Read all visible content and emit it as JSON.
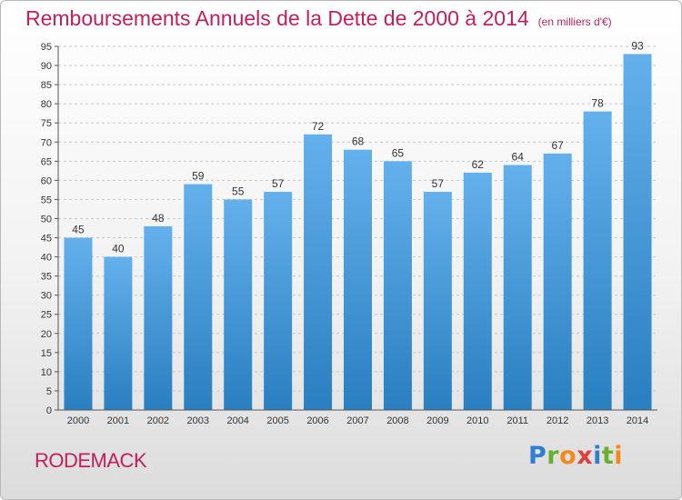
{
  "title": "Remboursements Annuels de la Dette de 2000 à 2014",
  "unit": "(en milliers d'€)",
  "place": "RODEMACK",
  "logo": {
    "text": "Proxiti",
    "letters": [
      {
        "ch": "P",
        "color": "#2f7fd0"
      },
      {
        "ch": "r",
        "color": "#6bb02c"
      },
      {
        "ch": "o",
        "color": "#f08a1c"
      },
      {
        "ch": "x",
        "color": "#e0403b"
      },
      {
        "ch": "i",
        "color": "#2f7fd0"
      },
      {
        "ch": "t",
        "color": "#6bb02c"
      },
      {
        "ch": "i",
        "color": "#f08a1c"
      }
    ]
  },
  "colors": {
    "accent": "#c21f5b",
    "bar_top": "#64b0ec",
    "bar_bottom": "#2a7fc0",
    "grid": "#c8c8c8"
  },
  "chart_data": {
    "type": "bar",
    "title": "Remboursements Annuels de la Dette de 2000 à 2014",
    "categories": [
      "2000",
      "2001",
      "2002",
      "2003",
      "2004",
      "2005",
      "2006",
      "2007",
      "2008",
      "2009",
      "2010",
      "2011",
      "2012",
      "2013",
      "2014"
    ],
    "values": [
      45,
      40,
      48,
      59,
      55,
      57,
      72,
      68,
      65,
      57,
      62,
      64,
      67,
      78,
      93
    ],
    "ylim": [
      0,
      95
    ],
    "ytick_step": 5,
    "grid": true,
    "data_labels": true
  }
}
